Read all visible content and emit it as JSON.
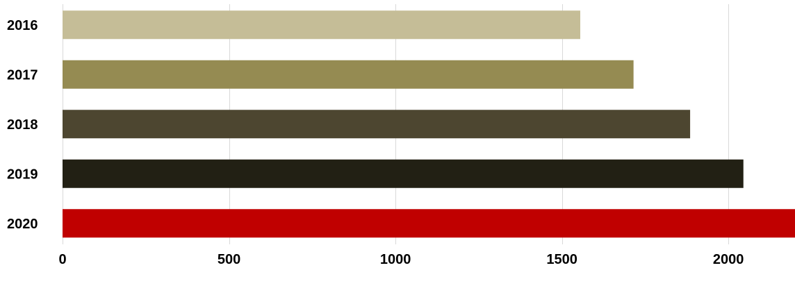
{
  "chart_data": {
    "type": "bar",
    "orientation": "horizontal",
    "categories": [
      "2016",
      "2017",
      "2018",
      "2019",
      "2020"
    ],
    "values": [
      1555,
      1715,
      1885,
      2045,
      2200
    ],
    "xlim": [
      0,
      2200
    ],
    "xticks": [
      "0",
      "500",
      "1000",
      "1500",
      "2000"
    ],
    "grid": "vertical",
    "legend": "none",
    "colors": [
      "#c5bd97",
      "#958b52",
      "#4d4630",
      "#222014",
      "#c00000"
    ],
    "grid_color": "#d9d9d9"
  }
}
